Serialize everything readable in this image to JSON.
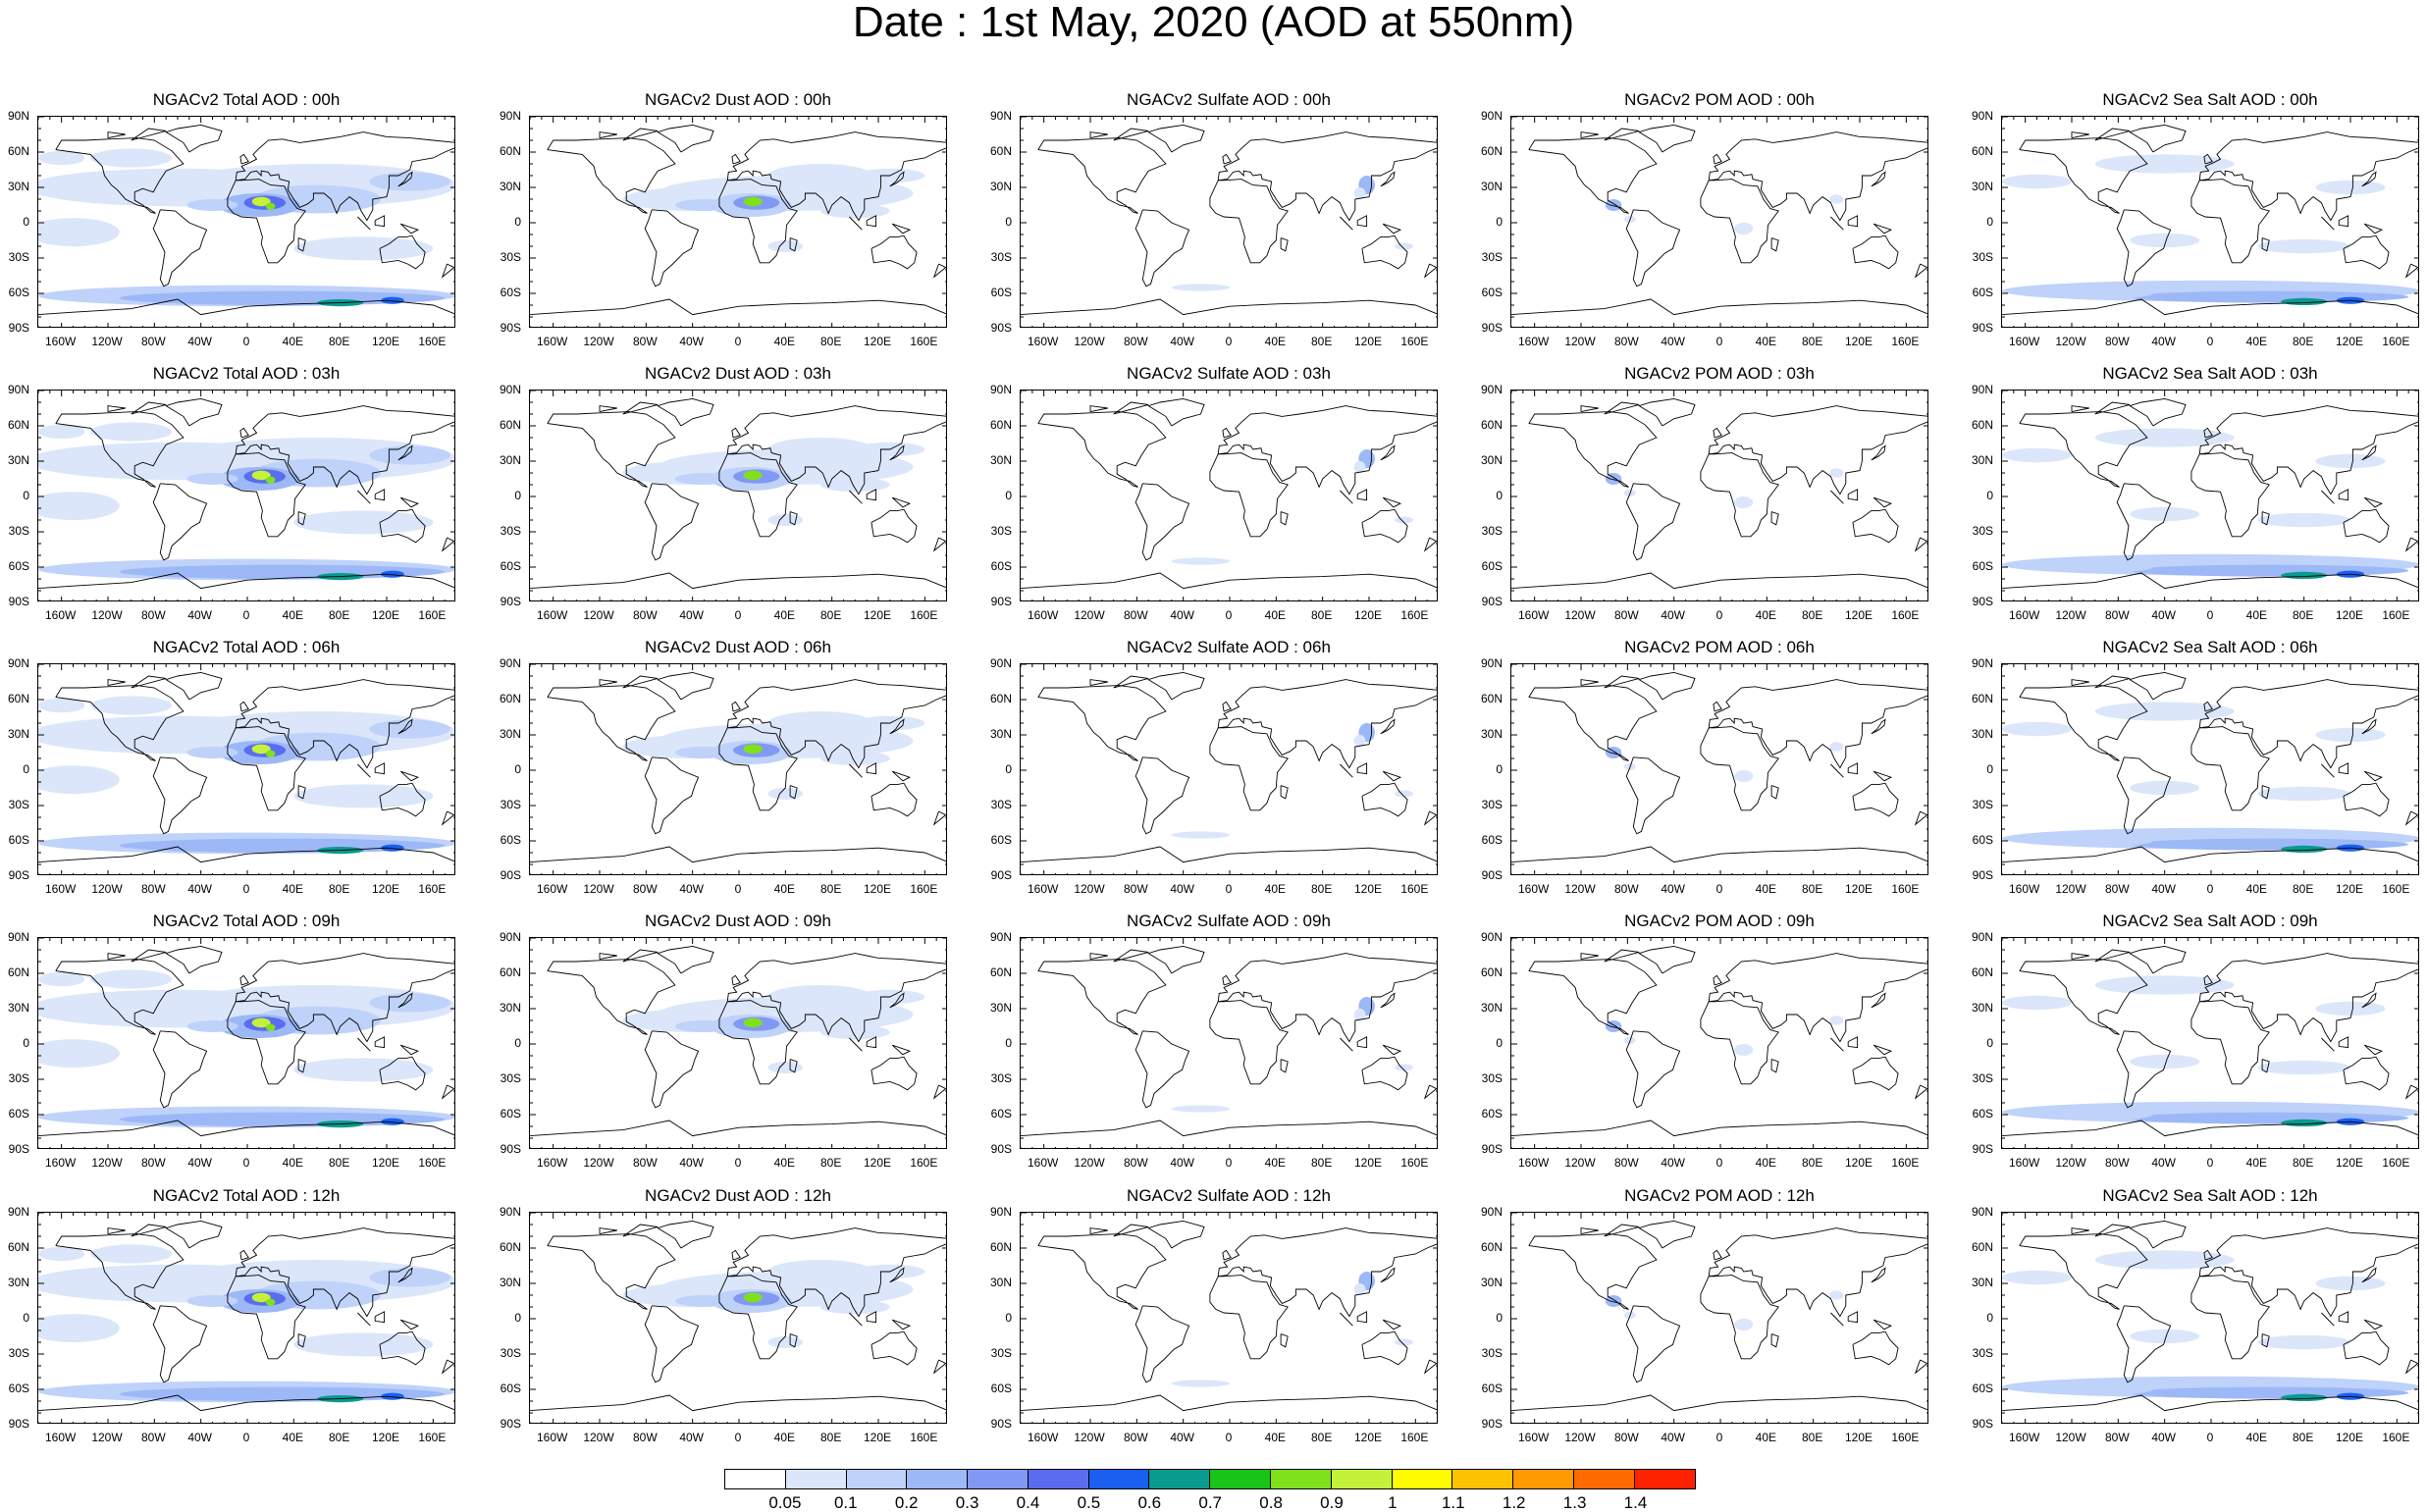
{
  "title": "Date : 1st May, 2020 (AOD at 550nm)",
  "lat_labels": [
    "90N",
    "60N",
    "30N",
    "0",
    "30S",
    "60S",
    "90S"
  ],
  "lon_labels": [
    "160W",
    "120W",
    "80W",
    "40W",
    "0",
    "40E",
    "80E",
    "120E",
    "160E"
  ],
  "panels": [
    [
      {
        "title": "NGACv2 Total AOD : 00h",
        "type": "total"
      },
      {
        "title": "NGACv2 Dust AOD : 00h",
        "type": "dust"
      },
      {
        "title": "NGACv2 Sulfate AOD : 00h",
        "type": "sulfate"
      },
      {
        "title": "NGACv2 POM AOD : 00h",
        "type": "pom"
      },
      {
        "title": "NGACv2 Sea Salt AOD : 00h",
        "type": "seasalt"
      }
    ],
    [
      {
        "title": "NGACv2 Total AOD : 03h",
        "type": "total"
      },
      {
        "title": "NGACv2 Dust AOD : 03h",
        "type": "dust"
      },
      {
        "title": "NGACv2 Sulfate AOD : 03h",
        "type": "sulfate"
      },
      {
        "title": "NGACv2 POM AOD : 03h",
        "type": "pom"
      },
      {
        "title": "NGACv2 Sea Salt AOD : 03h",
        "type": "seasalt"
      }
    ],
    [
      {
        "title": "NGACv2 Total AOD : 06h",
        "type": "total"
      },
      {
        "title": "NGACv2 Dust AOD : 06h",
        "type": "dust"
      },
      {
        "title": "NGACv2 Sulfate AOD : 06h",
        "type": "sulfate"
      },
      {
        "title": "NGACv2 POM AOD : 06h",
        "type": "pom"
      },
      {
        "title": "NGACv2 Sea Salt AOD : 06h",
        "type": "seasalt"
      }
    ],
    [
      {
        "title": "NGACv2 Total AOD : 09h",
        "type": "total"
      },
      {
        "title": "NGACv2 Dust AOD : 09h",
        "type": "dust"
      },
      {
        "title": "NGACv2 Sulfate AOD : 09h",
        "type": "sulfate"
      },
      {
        "title": "NGACv2 POM AOD : 09h",
        "type": "pom"
      },
      {
        "title": "NGACv2 Sea Salt  AOD : 09h",
        "type": "seasalt"
      }
    ],
    [
      {
        "title": "NGACv2 Total AOD : 12h",
        "type": "total"
      },
      {
        "title": "NGACv2 Dust AOD : 12h",
        "type": "dust"
      },
      {
        "title": "NGACv2 Sulfate AOD : 12h",
        "type": "sulfate"
      },
      {
        "title": "NGACv2 POM  AOD : 12h",
        "type": "pom"
      },
      {
        "title": "NGACv2 Sea Salt AOD : 12h",
        "type": "seasalt"
      }
    ]
  ],
  "colorbar": {
    "labels": [
      "0.05",
      "0.1",
      "0.2",
      "0.3",
      "0.4",
      "0.5",
      "0.6",
      "0.7",
      "0.8",
      "0.9",
      "1",
      "1.1",
      "1.2",
      "1.3",
      "1.4"
    ],
    "colors": [
      "#ffffff",
      "#dbe6fb",
      "#bfd2fa",
      "#9db8f7",
      "#8299f3",
      "#5a6df0",
      "#1a5ff0",
      "#0a9a8e",
      "#18c418",
      "#7fe11a",
      "#c4f23a",
      "#fffc00",
      "#ffc200",
      "#ff9a00",
      "#ff6a00",
      "#ff2200"
    ]
  }
}
